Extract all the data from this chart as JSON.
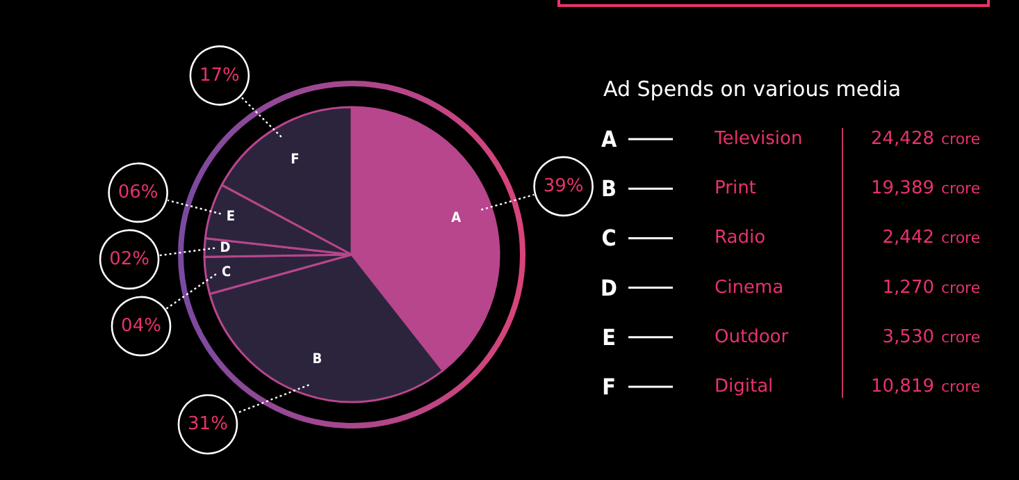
{
  "chart_data": {
    "type": "pie",
    "legend_title": "Ad Spends on various media",
    "categories": [
      "A",
      "B",
      "C",
      "D",
      "E",
      "F"
    ],
    "values": [
      39,
      31,
      4,
      2,
      6,
      17
    ],
    "value_labels": [
      "39%",
      "31%",
      "04%",
      "02%",
      "06%",
      "17%"
    ],
    "colors": [
      "#b8468c",
      "#2c243d",
      "#2c243d",
      "#2c243d",
      "#2c243d",
      "#2c243d"
    ],
    "annotations": [
      "Television",
      "Print",
      "Radio",
      "Cinema",
      "Outdoor",
      "Digital",
      "24,428 crore",
      "19,389 crore",
      "2,442 crore",
      "1,270 crore",
      "3,530 crore",
      "10,819 crore"
    ]
  }
}
